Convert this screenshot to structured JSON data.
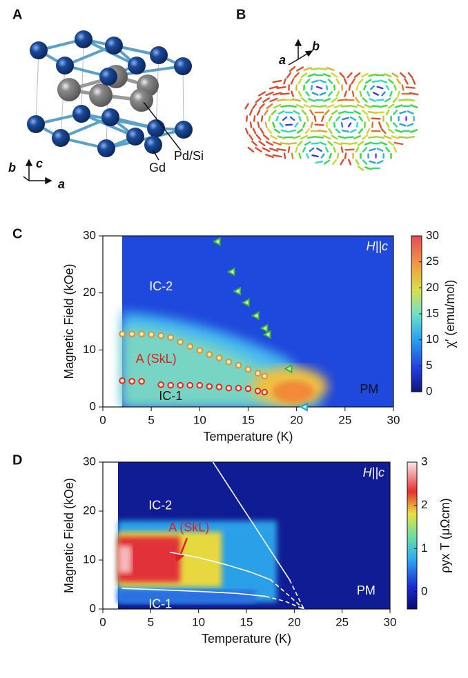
{
  "panel_a": {
    "label": "A",
    "gd_label": "Gd",
    "pdsi_label": "Pd/Si",
    "axis_b": "b",
    "axis_c": "c",
    "axis_a": "a"
  },
  "panel_b": {
    "label": "B",
    "axis_a": "a",
    "axis_b": "b"
  },
  "chart_data": [
    {
      "type": "scatter",
      "panel_label": "C",
      "annotation": "H||c",
      "xlabel": "Temperature (K)",
      "ylabel": "Magnetic Field (kOe)",
      "xlim": [
        0,
        30
      ],
      "xticks": [
        0,
        5,
        10,
        15,
        20,
        25,
        30
      ],
      "ylim": [
        0,
        30
      ],
      "yticks": [
        0,
        10,
        20,
        30
      ],
      "region_labels": [
        "IC-2",
        "A (SkL)",
        "IC-1",
        "PM"
      ],
      "colorbar": {
        "label": "χ′ (emu/mol)",
        "lim": [
          0,
          30
        ],
        "ticks": [
          0,
          5,
          10,
          15,
          20,
          25,
          30
        ]
      },
      "series": [
        {
          "marker": "circle",
          "color": "#e0902a",
          "x": [
            2,
            3,
            4,
            5,
            6,
            7,
            8,
            9,
            10,
            11,
            12,
            13,
            14,
            15,
            16,
            16.7
          ],
          "y": [
            12.8,
            12.8,
            12.8,
            12.7,
            12.5,
            12.2,
            11.4,
            10.6,
            9.9,
            9.2,
            8.6,
            7.9,
            7.3,
            6.6,
            5.9,
            5.4
          ]
        },
        {
          "marker": "circle",
          "color": "#e02828",
          "x": [
            2,
            3,
            4,
            6,
            7,
            8,
            9,
            10,
            11,
            12,
            13,
            14,
            15,
            16,
            16.7
          ],
          "y": [
            4.6,
            4.5,
            4.5,
            3.9,
            3.8,
            3.8,
            3.8,
            3.8,
            3.6,
            3.5,
            3.3,
            3.3,
            3.2,
            2.8,
            2.6
          ]
        },
        {
          "marker": "triangle-left",
          "color": "#3fae3a",
          "x": [
            11.8,
            13.3,
            13.9,
            14.8,
            15.8,
            16.7,
            17.0,
            19.2
          ],
          "y": [
            29.0,
            23.7,
            20.3,
            18.3,
            16.0,
            13.8,
            12.7,
            6.7
          ]
        },
        {
          "marker": "triangle-left",
          "color": "#1aa0e8",
          "x": [
            20.8
          ],
          "y": [
            0
          ]
        }
      ]
    },
    {
      "type": "line",
      "panel_label": "D",
      "annotation": "H||c",
      "xlabel": "Temperature (K)",
      "ylabel": "Magnetic Field (kOe)",
      "xlim": [
        0,
        30
      ],
      "xticks": [
        0,
        5,
        10,
        15,
        20,
        25,
        30
      ],
      "ylim": [
        0,
        30
      ],
      "yticks": [
        0,
        10,
        20,
        30
      ],
      "region_labels": [
        "IC-2",
        "A (SkL)",
        "IC-1",
        "PM"
      ],
      "colorbar": {
        "label": "ρyx T (μΩcm)",
        "lim": [
          -0.4,
          3
        ],
        "ticks": [
          0,
          1,
          2,
          3
        ]
      },
      "series": [
        {
          "marker": "line",
          "style": "solid",
          "color": "#ffffff",
          "x": [
            11.5,
            13,
            15,
            17,
            19.5
          ],
          "y": [
            30,
            25.5,
            19.5,
            13.5,
            6
          ]
        },
        {
          "marker": "line",
          "style": "dashed",
          "color": "#ffffff",
          "x": [
            19.5,
            21
          ],
          "y": [
            6,
            0
          ]
        },
        {
          "marker": "line",
          "style": "solid",
          "color": "#ffffff",
          "x": [
            7,
            10,
            13,
            15.5,
            17.5
          ],
          "y": [
            11.6,
            10.5,
            9,
            7.5,
            6
          ]
        },
        {
          "marker": "line",
          "style": "dashed",
          "color": "#ffffff",
          "x": [
            17.5,
            19,
            21
          ],
          "y": [
            6,
            3.5,
            0
          ]
        },
        {
          "marker": "line",
          "style": "solid",
          "color": "#ffffff",
          "x": [
            2,
            5,
            10,
            14,
            17
          ],
          "y": [
            4.2,
            4,
            3.6,
            3.2,
            2.6
          ]
        },
        {
          "marker": "line",
          "style": "dashed",
          "color": "#ffffff",
          "x": [
            17,
            19,
            21
          ],
          "y": [
            2.6,
            1.6,
            0
          ]
        }
      ]
    }
  ]
}
